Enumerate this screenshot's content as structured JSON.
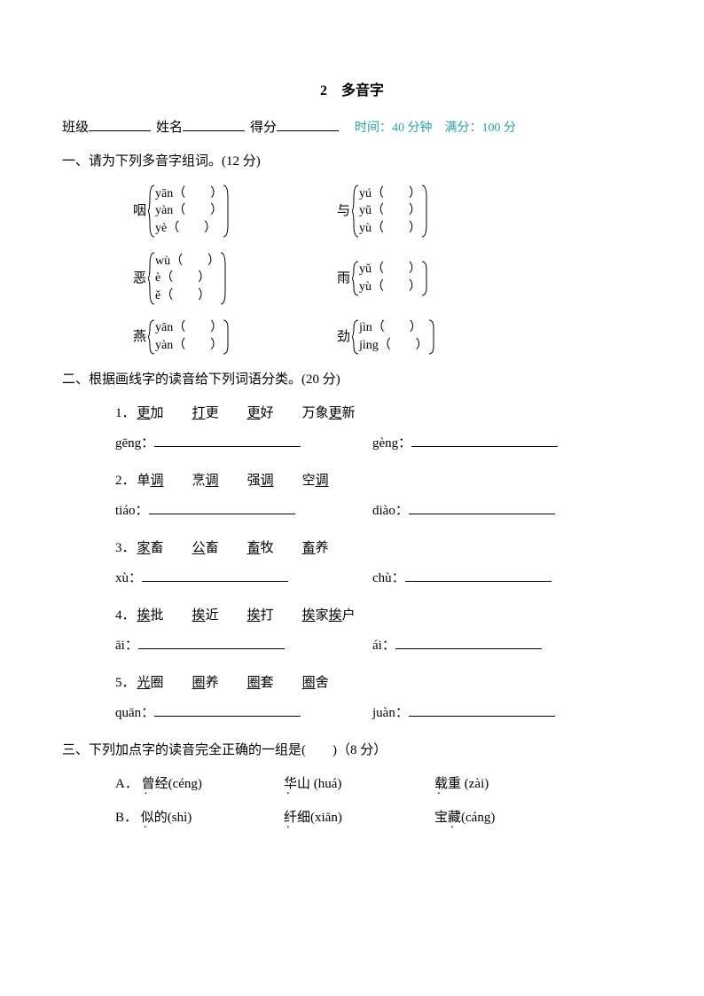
{
  "title": "2　多音字",
  "header": {
    "class_label": "班级",
    "name_label": "姓名",
    "score_label": "得分",
    "meta": "时间：40 分钟　满分：100 分"
  },
  "section1": {
    "label": "一、请为下列多音字组词。(12 分)",
    "items": [
      [
        {
          "char": "咽",
          "pinyins": [
            "yān",
            "yàn",
            "yè"
          ]
        },
        {
          "char": "与",
          "pinyins": [
            "yú",
            "yǔ",
            "yù"
          ]
        }
      ],
      [
        {
          "char": "恶",
          "pinyins": [
            "wù",
            "è",
            "ě"
          ]
        },
        {
          "char": "雨",
          "pinyins": [
            "yǔ",
            "yù"
          ]
        }
      ],
      [
        {
          "char": "燕",
          "pinyins": [
            "yān",
            "yàn"
          ]
        },
        {
          "char": "劲",
          "pinyins": [
            "jìn",
            "jìng"
          ]
        }
      ]
    ]
  },
  "section2": {
    "label": "二、根据画线字的读音给下列词语分类。(20 分)",
    "items": [
      {
        "num": "1．",
        "words": [
          "更加",
          "打更",
          "更好",
          "万象更新"
        ],
        "ucol": 0,
        "p1": "gēng：",
        "p2": "gèng："
      },
      {
        "num": "2．",
        "words": [
          "单调",
          "烹调",
          "强调",
          "空调"
        ],
        "ucol": 1,
        "p1": "tiáo：",
        "p2": "diào："
      },
      {
        "num": "3．",
        "words": [
          "家畜",
          "公畜",
          "畜牧",
          "畜养"
        ],
        "ucol": 0,
        "p1": "xù：",
        "p2": "chù："
      },
      {
        "num": "4．",
        "words": [
          "挨批",
          "挨近",
          "挨打",
          "挨家挨户"
        ],
        "ucol": 0,
        "p1": "āi：",
        "p2": "ái："
      },
      {
        "num": "5．",
        "words": [
          "光圈",
          "圈养",
          "圈套",
          "圈舍"
        ],
        "ucol": 0,
        "p1": "quān：",
        "p2": "juàn："
      }
    ]
  },
  "section3": {
    "label": "三、下列加点字的读音完全正确的一组是(　　)（8 分）",
    "rows": [
      {
        "opt": "A．",
        "c1": "曾经(céng)",
        "c1_dot": 0,
        "c2": "华山 (huá)",
        "c2_dot": 0,
        "c3": "载重 (zài)",
        "c3_dot": 0
      },
      {
        "opt": "B．",
        "c1": "似的(shì)",
        "c1_dot": 0,
        "c2": "纤细(xiān)",
        "c2_dot": 0,
        "c3": "宝藏(cáng)",
        "c3_dot": 1
      }
    ]
  }
}
